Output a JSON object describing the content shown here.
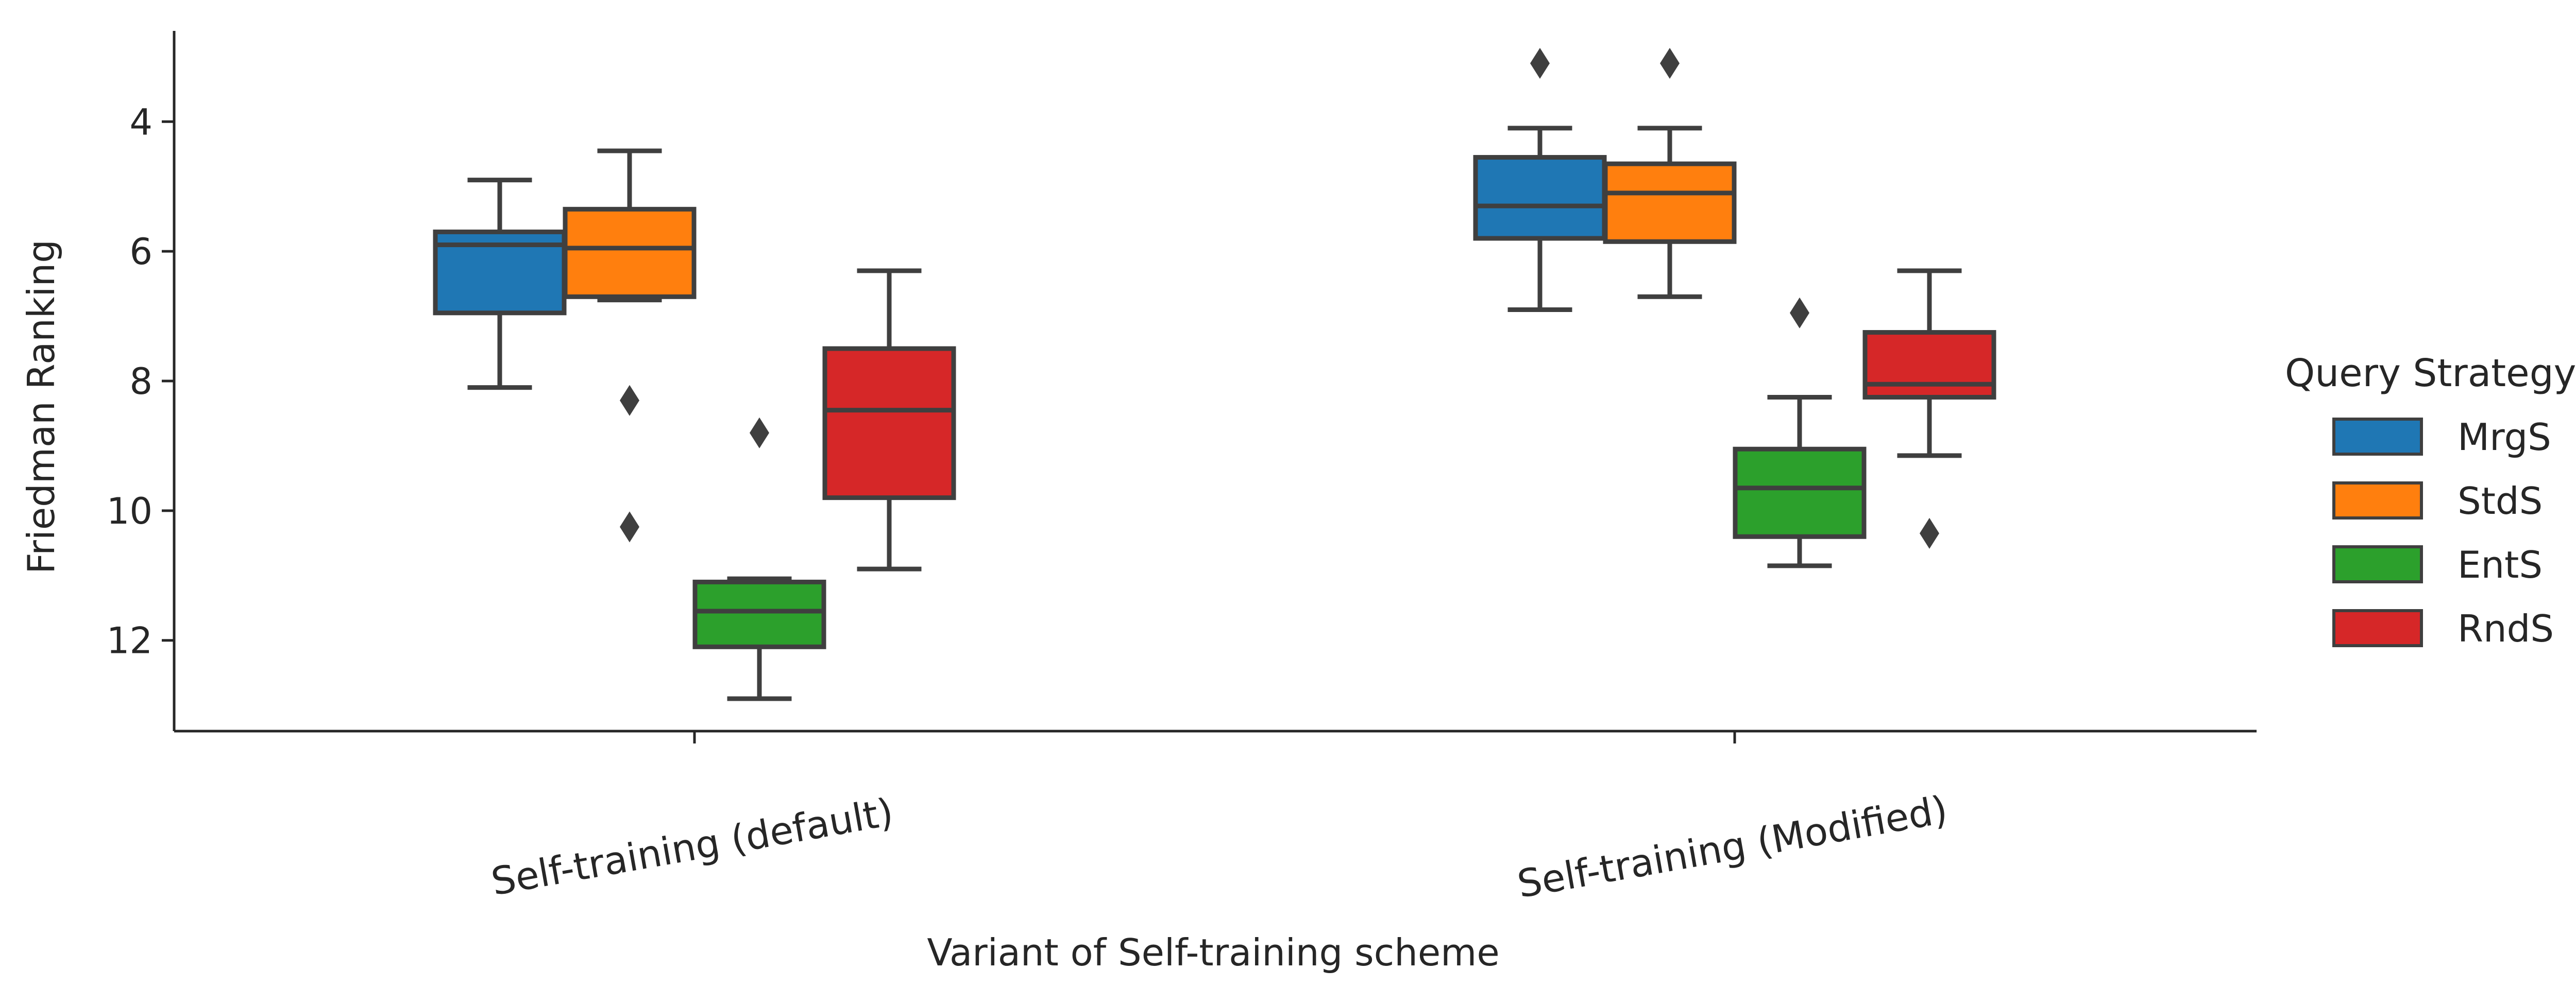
{
  "chart_data": {
    "type": "box",
    "categories": [
      "Self-training (default)",
      "Self-training (Modified)"
    ],
    "xlabel": "Variant of Self-training scheme",
    "ylabel": "Friedman Ranking",
    "y_axis_inverted": true,
    "ylim": [
      13.4,
      2.6
    ],
    "yticks": [
      4,
      6,
      8,
      10,
      12
    ],
    "legend": {
      "title": "Query Strategy",
      "placement": "right"
    },
    "grid": false,
    "series": [
      {
        "name": "MrgS",
        "color": "#1f77b4",
        "boxes": [
          {
            "whisker_low": 4.9,
            "q1": 5.7,
            "median": 5.9,
            "q3": 6.95,
            "whisker_high": 8.1,
            "outliers": []
          },
          {
            "whisker_low": 4.1,
            "q1": 4.55,
            "median": 5.3,
            "q3": 5.8,
            "whisker_high": 6.9,
            "outliers": [
              3.1
            ]
          }
        ]
      },
      {
        "name": "StdS",
        "color": "#ff7f0e",
        "boxes": [
          {
            "whisker_low": 4.45,
            "q1": 5.35,
            "median": 5.95,
            "q3": 6.7,
            "whisker_high": 6.75,
            "outliers": [
              8.3,
              10.25
            ]
          },
          {
            "whisker_low": 4.1,
            "q1": 4.65,
            "median": 5.1,
            "q3": 5.85,
            "whisker_high": 6.7,
            "outliers": [
              3.1
            ]
          }
        ]
      },
      {
        "name": "EntS",
        "color": "#2ca02c",
        "boxes": [
          {
            "whisker_low": 11.05,
            "q1": 11.1,
            "median": 11.55,
            "q3": 12.1,
            "whisker_high": 12.9,
            "outliers": [
              8.8
            ]
          },
          {
            "whisker_low": 8.25,
            "q1": 9.05,
            "median": 9.65,
            "q3": 10.4,
            "whisker_high": 10.85,
            "outliers": [
              6.95
            ]
          }
        ]
      },
      {
        "name": "RndS",
        "color": "#d62728",
        "boxes": [
          {
            "whisker_low": 6.3,
            "q1": 7.5,
            "median": 8.45,
            "q3": 9.8,
            "whisker_high": 10.9,
            "outliers": []
          },
          {
            "whisker_low": 6.3,
            "q1": 7.25,
            "median": 8.05,
            "q3": 8.25,
            "whisker_high": 9.15,
            "outliers": [
              10.35
            ]
          }
        ]
      }
    ]
  }
}
